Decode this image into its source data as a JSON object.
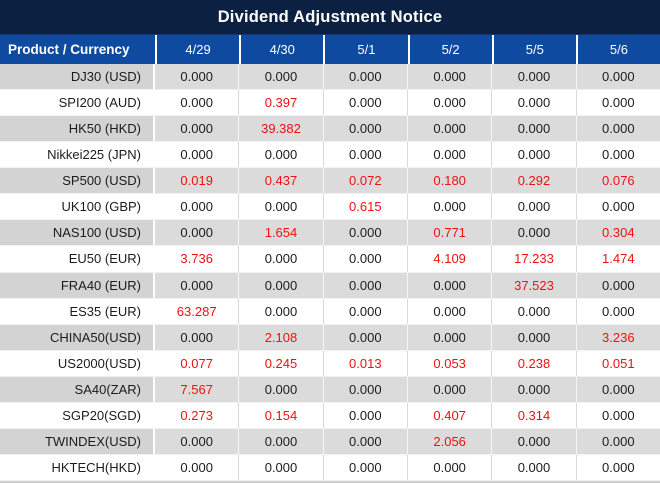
{
  "title": "Dividend Adjustment Notice",
  "header": {
    "product_label": "Product / Currency",
    "dates": [
      "4/29",
      "4/30",
      "5/1",
      "5/2",
      "5/5",
      "5/6"
    ]
  },
  "rows": [
    {
      "product": "DJ30 (USD)",
      "values": [
        "0.000",
        "0.000",
        "0.000",
        "0.000",
        "0.000",
        "0.000"
      ],
      "red": [
        false,
        false,
        false,
        false,
        false,
        false
      ]
    },
    {
      "product": "SPI200 (AUD)",
      "values": [
        "0.000",
        "0.397",
        "0.000",
        "0.000",
        "0.000",
        "0.000"
      ],
      "red": [
        false,
        true,
        false,
        false,
        false,
        false
      ]
    },
    {
      "product": "HK50 (HKD)",
      "values": [
        "0.000",
        "39.382",
        "0.000",
        "0.000",
        "0.000",
        "0.000"
      ],
      "red": [
        false,
        true,
        false,
        false,
        false,
        false
      ]
    },
    {
      "product": "Nikkei225 (JPN)",
      "values": [
        "0.000",
        "0.000",
        "0.000",
        "0.000",
        "0.000",
        "0.000"
      ],
      "red": [
        false,
        false,
        false,
        false,
        false,
        false
      ]
    },
    {
      "product": "SP500 (USD)",
      "values": [
        "0.019",
        "0.437",
        "0.072",
        "0.180",
        "0.292",
        "0.076"
      ],
      "red": [
        true,
        true,
        true,
        true,
        true,
        true
      ]
    },
    {
      "product": "UK100 (GBP)",
      "values": [
        "0.000",
        "0.000",
        "0.615",
        "0.000",
        "0.000",
        "0.000"
      ],
      "red": [
        false,
        false,
        true,
        false,
        false,
        false
      ]
    },
    {
      "product": "NAS100 (USD)",
      "values": [
        "0.000",
        "1.654",
        "0.000",
        "0.771",
        "0.000",
        "0.304"
      ],
      "red": [
        false,
        true,
        false,
        true,
        false,
        true
      ]
    },
    {
      "product": "EU50 (EUR)",
      "values": [
        "3.736",
        "0.000",
        "0.000",
        "4.109",
        "17.233",
        "1.474"
      ],
      "red": [
        true,
        false,
        false,
        true,
        true,
        true
      ]
    },
    {
      "product": "FRA40 (EUR)",
      "values": [
        "0.000",
        "0.000",
        "0.000",
        "0.000",
        "37.523",
        "0.000"
      ],
      "red": [
        false,
        false,
        false,
        false,
        true,
        false
      ]
    },
    {
      "product": "ES35 (EUR)",
      "values": [
        "63.287",
        "0.000",
        "0.000",
        "0.000",
        "0.000",
        "0.000"
      ],
      "red": [
        true,
        false,
        false,
        false,
        false,
        false
      ]
    },
    {
      "product": "CHINA50(USD)",
      "values": [
        "0.000",
        "2.108",
        "0.000",
        "0.000",
        "0.000",
        "3.236"
      ],
      "red": [
        false,
        true,
        false,
        false,
        false,
        true
      ]
    },
    {
      "product": "US2000(USD)",
      "values": [
        "0.077",
        "0.245",
        "0.013",
        "0.053",
        "0.238",
        "0.051"
      ],
      "red": [
        true,
        true,
        true,
        true,
        true,
        true
      ]
    },
    {
      "product": "SA40(ZAR)",
      "values": [
        "7.567",
        "0.000",
        "0.000",
        "0.000",
        "0.000",
        "0.000"
      ],
      "red": [
        true,
        false,
        false,
        false,
        false,
        false
      ]
    },
    {
      "product": "SGP20(SGD)",
      "values": [
        "0.273",
        "0.154",
        "0.000",
        "0.407",
        "0.314",
        "0.000"
      ],
      "red": [
        true,
        true,
        false,
        true,
        true,
        false
      ]
    },
    {
      "product": "TWINDEX(USD)",
      "values": [
        "0.000",
        "0.000",
        "0.000",
        "2.056",
        "0.000",
        "0.000"
      ],
      "red": [
        false,
        false,
        false,
        true,
        false,
        false
      ]
    },
    {
      "product": "HKTECH(HKD)",
      "values": [
        "0.000",
        "0.000",
        "0.000",
        "0.000",
        "0.000",
        "0.000"
      ],
      "red": [
        false,
        false,
        false,
        false,
        false,
        false
      ]
    }
  ],
  "colors": {
    "title_bg": "#0c2142",
    "header_bg": "#0e4a9f",
    "row_gray_name_bg": "#d3d3d3",
    "row_gray_value_bg": "#dbdbdb",
    "row_white_bg": "#ffffff",
    "value_text": "#1c1c1c",
    "highlight_red": "#ee1111",
    "header_text": "#ffffff"
  }
}
